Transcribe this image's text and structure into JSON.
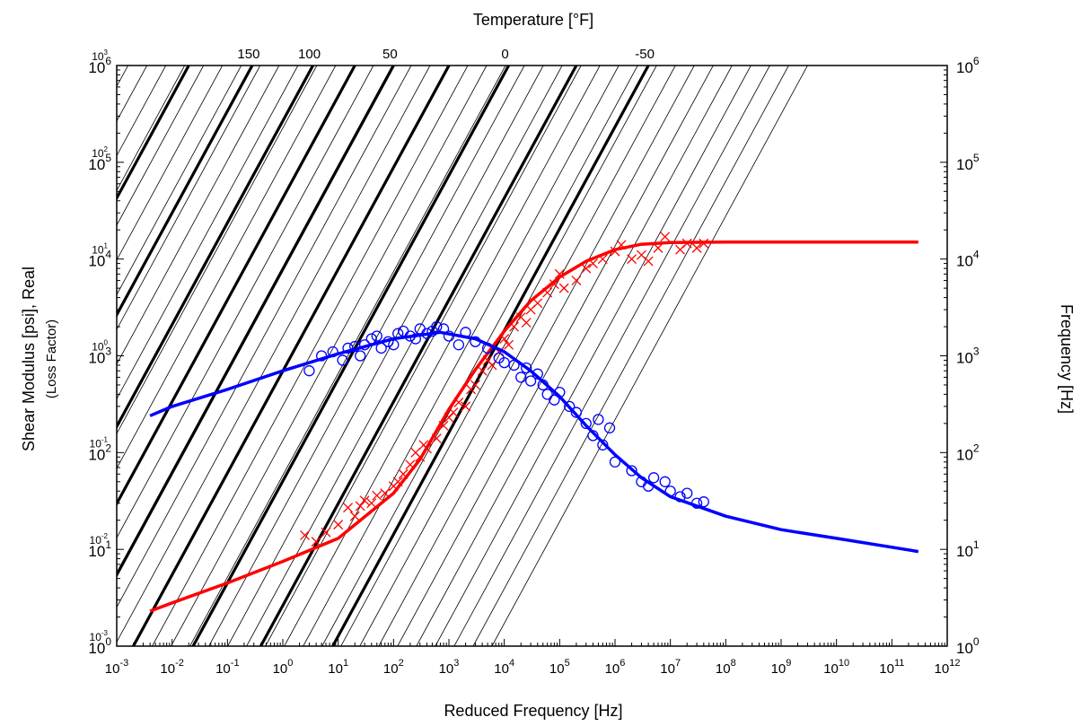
{
  "chart_data": {
    "type": "scatter",
    "title": "",
    "xlabel": "Reduced Frequency [Hz]",
    "ylabel": "Shear Modulus [psi], Real",
    "ylabel_secondary": "(Loss Factor)",
    "y2label": "Frequency [Hz]",
    "top_label": "Temperature [°F]",
    "x_scale": "log",
    "y_scale": "log",
    "xlim": [
      0.001,
      1000000000000
    ],
    "ylim": [
      1,
      1000000
    ],
    "loss_ylim": [
      0.001,
      1000
    ],
    "y2lim": [
      1,
      1000000
    ],
    "x_ticks": [
      {
        "base": "10",
        "exp": "-3"
      },
      {
        "base": "10",
        "exp": "-2"
      },
      {
        "base": "10",
        "exp": "-1"
      },
      {
        "base": "10",
        "exp": "0"
      },
      {
        "base": "10",
        "exp": "1"
      },
      {
        "base": "10",
        "exp": "2"
      },
      {
        "base": "10",
        "exp": "3"
      },
      {
        "base": "10",
        "exp": "4"
      },
      {
        "base": "10",
        "exp": "5"
      },
      {
        "base": "10",
        "exp": "6"
      },
      {
        "base": "10",
        "exp": "7"
      },
      {
        "base": "10",
        "exp": "8"
      },
      {
        "base": "10",
        "exp": "9"
      },
      {
        "base": "10",
        "exp": "10"
      },
      {
        "base": "10",
        "exp": "11"
      },
      {
        "base": "10",
        "exp": "12"
      }
    ],
    "y_ticks": [
      {
        "base": "10",
        "exp": "0"
      },
      {
        "base": "10",
        "exp": "1"
      },
      {
        "base": "10",
        "exp": "2"
      },
      {
        "base": "10",
        "exp": "3"
      },
      {
        "base": "10",
        "exp": "4"
      },
      {
        "base": "10",
        "exp": "5"
      },
      {
        "base": "10",
        "exp": "6"
      }
    ],
    "loss_ticks": [
      {
        "base": "10",
        "exp": "-3"
      },
      {
        "base": "10",
        "exp": "-2"
      },
      {
        "base": "10",
        "exp": "-1"
      },
      {
        "base": "10",
        "exp": "0"
      },
      {
        "base": "10",
        "exp": "1"
      },
      {
        "base": "10",
        "exp": "2"
      },
      {
        "base": "10",
        "exp": "3"
      }
    ],
    "y2_ticks": [
      {
        "base": "10",
        "exp": "0"
      },
      {
        "base": "10",
        "exp": "1"
      },
      {
        "base": "10",
        "exp": "2"
      },
      {
        "base": "10",
        "exp": "3"
      },
      {
        "base": "10",
        "exp": "4"
      },
      {
        "base": "10",
        "exp": "5"
      },
      {
        "base": "10",
        "exp": "6"
      }
    ],
    "temperature_ticks": [
      {
        "label": "150",
        "x_at_top": 0.28
      },
      {
        "label": "100",
        "x_at_top": 3.5
      },
      {
        "label": "50",
        "x_at_top": 100
      },
      {
        "label": "0",
        "x_at_top": 12000
      },
      {
        "label": "-50",
        "x_at_top": 4000000
      }
    ],
    "isotherms": {
      "bold_x_at_top": [
        0.02,
        0.28,
        3.5,
        20,
        100,
        1000,
        12000,
        200000,
        4000000
      ],
      "thin_count": 45,
      "thin_x_at_top_range": [
        3e-06,
        3000000000
      ],
      "bold_x_at_bottom": [
        0.0045,
        0.4,
        40,
        15000,
        5000000
      ]
    },
    "series": [
      {
        "name": "",
        "kind": "line",
        "color": "#ff0000",
        "quantity": "shear_modulus",
        "points": [
          [
            0.004,
            2.3
          ],
          [
            0.01,
            2.8
          ],
          [
            0.1,
            4.5
          ],
          [
            1,
            7.5
          ],
          [
            10,
            13
          ],
          [
            100,
            38
          ],
          [
            300,
            85
          ],
          [
            1000,
            280
          ],
          [
            3000,
            720
          ],
          [
            10000,
            1800
          ],
          [
            30000,
            3700
          ],
          [
            100000,
            6500
          ],
          [
            300000,
            9500
          ],
          [
            1000000,
            12500
          ],
          [
            3000000,
            14200
          ],
          [
            10000000,
            14800
          ],
          [
            100000000,
            15000
          ],
          [
            1000000000,
            15000
          ],
          [
            10000000000,
            15000
          ],
          [
            300000000000,
            15000
          ]
        ]
      },
      {
        "name": "",
        "kind": "markers",
        "marker": "x",
        "color": "#ff0000",
        "quantity": "shear_modulus",
        "points": [
          [
            2.5,
            14
          ],
          [
            4,
            12
          ],
          [
            6,
            15
          ],
          [
            10,
            18
          ],
          [
            15,
            27
          ],
          [
            20,
            22
          ],
          [
            25,
            28
          ],
          [
            30,
            32
          ],
          [
            40,
            30
          ],
          [
            50,
            36
          ],
          [
            70,
            38
          ],
          [
            100,
            45
          ],
          [
            120,
            50
          ],
          [
            150,
            60
          ],
          [
            200,
            75
          ],
          [
            250,
            100
          ],
          [
            300,
            90
          ],
          [
            350,
            120
          ],
          [
            400,
            110
          ],
          [
            600,
            140
          ],
          [
            800,
            190
          ],
          [
            1000,
            230
          ],
          [
            1200,
            260
          ],
          [
            1500,
            330
          ],
          [
            2000,
            300
          ],
          [
            2500,
            450
          ],
          [
            3000,
            500
          ],
          [
            4000,
            700
          ],
          [
            5000,
            900
          ],
          [
            6000,
            800
          ],
          [
            8000,
            1100
          ],
          [
            10000,
            1500
          ],
          [
            12000,
            1300
          ],
          [
            15000,
            2000
          ],
          [
            20000,
            2500
          ],
          [
            25000,
            2200
          ],
          [
            30000,
            3000
          ],
          [
            40000,
            3500
          ],
          [
            60000,
            4500
          ],
          [
            80000,
            5500
          ],
          [
            100000,
            7000
          ],
          [
            120000,
            5000
          ],
          [
            200000,
            6000
          ],
          [
            300000,
            8000
          ],
          [
            400000,
            9000
          ],
          [
            600000,
            10000
          ],
          [
            1000000,
            12000
          ],
          [
            1300000,
            14000
          ],
          [
            2000000,
            10000
          ],
          [
            3000000,
            11000
          ],
          [
            4000000,
            9500
          ],
          [
            6000000,
            13000
          ],
          [
            8000000,
            17000
          ],
          [
            15000000,
            12500
          ],
          [
            20000000,
            14500
          ],
          [
            30000000,
            13000
          ],
          [
            40000000,
            14500
          ]
        ]
      },
      {
        "name": "",
        "kind": "line",
        "color": "#0000ff",
        "quantity": "loss_factor",
        "points": [
          [
            0.004,
            0.24
          ],
          [
            0.01,
            0.3
          ],
          [
            0.1,
            0.45
          ],
          [
            1,
            0.7
          ],
          [
            10,
            1.05
          ],
          [
            100,
            1.5
          ],
          [
            700,
            1.75
          ],
          [
            3000,
            1.5
          ],
          [
            10000,
            1.1
          ],
          [
            30000,
            0.7
          ],
          [
            100000,
            0.38
          ],
          [
            300000,
            0.19
          ],
          [
            1000000,
            0.095
          ],
          [
            3000000,
            0.055
          ],
          [
            10000000,
            0.035
          ],
          [
            100000000,
            0.022
          ],
          [
            1000000000,
            0.016
          ],
          [
            10000000000,
            0.013
          ],
          [
            300000000000,
            0.0095
          ]
        ]
      },
      {
        "name": "",
        "kind": "markers",
        "marker": "o",
        "color": "#0000ff",
        "quantity": "loss_factor",
        "points": [
          [
            3,
            0.7
          ],
          [
            5,
            1.0
          ],
          [
            8,
            1.1
          ],
          [
            12,
            0.9
          ],
          [
            15,
            1.2
          ],
          [
            20,
            1.25
          ],
          [
            25,
            1.0
          ],
          [
            30,
            1.3
          ],
          [
            40,
            1.5
          ],
          [
            50,
            1.6
          ],
          [
            60,
            1.2
          ],
          [
            80,
            1.4
          ],
          [
            100,
            1.3
          ],
          [
            120,
            1.7
          ],
          [
            150,
            1.8
          ],
          [
            200,
            1.6
          ],
          [
            250,
            1.5
          ],
          [
            300,
            1.9
          ],
          [
            400,
            1.7
          ],
          [
            500,
            1.8
          ],
          [
            600,
            2.0
          ],
          [
            800,
            1.9
          ],
          [
            1000,
            1.6
          ],
          [
            1500,
            1.3
          ],
          [
            2000,
            1.75
          ],
          [
            3000,
            1.4
          ],
          [
            5000,
            1.2
          ],
          [
            8000,
            0.95
          ],
          [
            10000,
            0.85
          ],
          [
            15000,
            0.8
          ],
          [
            20000,
            0.6
          ],
          [
            25000,
            0.75
          ],
          [
            30000,
            0.55
          ],
          [
            40000,
            0.65
          ],
          [
            50000,
            0.5
          ],
          [
            60000,
            0.4
          ],
          [
            80000,
            0.35
          ],
          [
            100000,
            0.42
          ],
          [
            150000,
            0.3
          ],
          [
            200000,
            0.26
          ],
          [
            300000,
            0.2
          ],
          [
            400000,
            0.15
          ],
          [
            500000,
            0.22
          ],
          [
            600000,
            0.12
          ],
          [
            800000,
            0.18
          ],
          [
            1000000,
            0.08
          ],
          [
            2000000,
            0.065
          ],
          [
            3000000,
            0.05
          ],
          [
            4000000,
            0.045
          ],
          [
            5000000,
            0.055
          ],
          [
            8000000,
            0.05
          ],
          [
            10000000,
            0.04
          ],
          [
            15000000,
            0.035
          ],
          [
            20000000,
            0.038
          ],
          [
            30000000,
            0.03
          ],
          [
            40000000,
            0.031
          ]
        ]
      }
    ],
    "grid": false,
    "legend": "none"
  }
}
